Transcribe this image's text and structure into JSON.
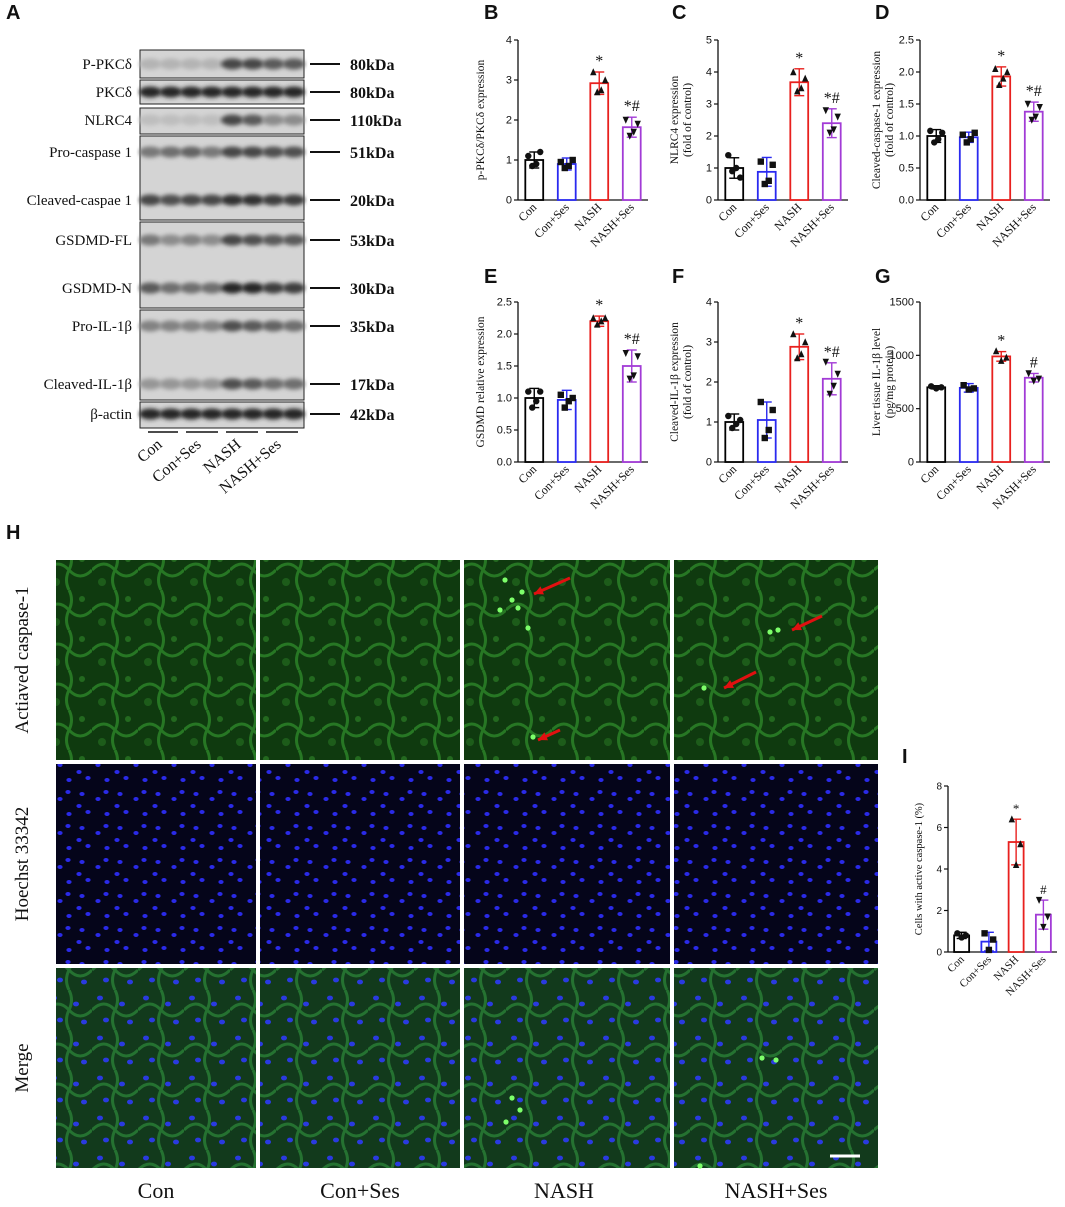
{
  "panel_labels": [
    "A",
    "B",
    "C",
    "D",
    "E",
    "F",
    "G",
    "H",
    "I"
  ],
  "western_blot": {
    "rows": [
      {
        "label": "P-PKCδ",
        "size": "80kDa"
      },
      {
        "label": "PKCδ",
        "size": "80kDa"
      },
      {
        "label": "NLRC4",
        "size": "110kDa"
      },
      {
        "label": "Pro-caspase 1",
        "size": "51kDa"
      },
      {
        "label": "Cleaved-caspae 1",
        "size": "20kDa"
      },
      {
        "label": "GSDMD-FL",
        "size": "53kDa"
      },
      {
        "label": "GSDMD-N",
        "size": "30kDa"
      },
      {
        "label": "Pro-IL-1β",
        "size": "35kDa"
      },
      {
        "label": "Cleaved-IL-1β",
        "size": "17kDa"
      },
      {
        "label": "β-actin",
        "size": "42kDa"
      }
    ],
    "groups": [
      "Con",
      "Con+Ses",
      "NASH",
      "NASH+Ses"
    ]
  },
  "chart_data": [
    {
      "id": "B",
      "type": "bar",
      "categories": [
        "Con",
        "Con+Ses",
        "NASH",
        "NASH+Ses"
      ],
      "values": [
        1.0,
        0.9,
        2.92,
        1.82
      ],
      "errors": [
        0.2,
        0.15,
        0.28,
        0.25
      ],
      "ylabel": "p-PKCδ/PKCδ expression",
      "ylim": [
        0,
        4
      ],
      "yticks": [
        0,
        1,
        2,
        3,
        4
      ],
      "points": [
        [
          1.1,
          0.85,
          0.9,
          1.2
        ],
        [
          0.95,
          0.8,
          0.85,
          1.0
        ],
        [
          3.2,
          2.7,
          2.75,
          3.0
        ],
        [
          2.0,
          1.6,
          1.7,
          1.9
        ]
      ],
      "annotations": [
        "",
        "",
        "*",
        "*#"
      ]
    },
    {
      "id": "C",
      "type": "bar",
      "categories": [
        "Con",
        "Con+Ses",
        "NASH",
        "NASH+Ses"
      ],
      "values": [
        1.0,
        0.88,
        3.68,
        2.4
      ],
      "errors": [
        0.32,
        0.45,
        0.42,
        0.45
      ],
      "ylabel": "NLRC4 expression\n(fold of control)",
      "ylim": [
        0,
        5
      ],
      "yticks": [
        0,
        1,
        2,
        3,
        4,
        5
      ],
      "points": [
        [
          1.4,
          0.9,
          1.0,
          0.7
        ],
        [
          1.2,
          0.5,
          0.6,
          1.1
        ],
        [
          4.0,
          3.4,
          3.5,
          3.8
        ],
        [
          2.8,
          2.1,
          2.2,
          2.6
        ]
      ],
      "annotations": [
        "",
        "",
        "*",
        "*#"
      ]
    },
    {
      "id": "D",
      "type": "bar",
      "categories": [
        "Con",
        "Con+Ses",
        "NASH",
        "NASH+Ses"
      ],
      "values": [
        1.0,
        0.98,
        1.93,
        1.38
      ],
      "errors": [
        0.1,
        0.08,
        0.15,
        0.15
      ],
      "ylabel": "Cleaved-caspase-1 expression\n(fold of control)",
      "ylim": [
        0,
        2.5
      ],
      "yticks": [
        0,
        0.5,
        1.0,
        1.5,
        2.0,
        2.5
      ],
      "points": [
        [
          1.08,
          0.9,
          0.95,
          1.05
        ],
        [
          1.02,
          0.9,
          0.95,
          1.05
        ],
        [
          2.05,
          1.8,
          1.9,
          2.0
        ],
        [
          1.5,
          1.25,
          1.3,
          1.45
        ]
      ],
      "annotations": [
        "",
        "",
        "*",
        "*#"
      ]
    },
    {
      "id": "E",
      "type": "bar",
      "categories": [
        "Con",
        "Con+Ses",
        "NASH",
        "NASH+Ses"
      ],
      "values": [
        1.0,
        0.97,
        2.2,
        1.5
      ],
      "errors": [
        0.15,
        0.15,
        0.08,
        0.25
      ],
      "ylabel": "GSDMD relative expression",
      "ylim": [
        0,
        2.5
      ],
      "yticks": [
        0,
        0.5,
        1.0,
        1.5,
        2.0,
        2.5
      ],
      "points": [
        [
          1.1,
          0.85,
          0.95,
          1.1
        ],
        [
          1.05,
          0.85,
          0.95,
          1.0
        ],
        [
          2.25,
          2.15,
          2.2,
          2.25
        ],
        [
          1.7,
          1.3,
          1.35,
          1.65
        ]
      ],
      "annotations": [
        "",
        "",
        "*",
        "*#"
      ]
    },
    {
      "id": "F",
      "type": "bar",
      "categories": [
        "Con",
        "Con+Ses",
        "NASH",
        "NASH+Ses"
      ],
      "values": [
        1.0,
        1.05,
        2.88,
        2.08
      ],
      "errors": [
        0.2,
        0.45,
        0.32,
        0.4
      ],
      "ylabel": "Cleaved-IL-1β expression\n(fold of control)",
      "ylim": [
        0,
        4
      ],
      "yticks": [
        0,
        1,
        2,
        3,
        4
      ],
      "points": [
        [
          1.15,
          0.85,
          0.95,
          1.05
        ],
        [
          1.5,
          0.6,
          0.8,
          1.3
        ],
        [
          3.2,
          2.6,
          2.7,
          3.0
        ],
        [
          2.5,
          1.7,
          1.9,
          2.2
        ]
      ],
      "annotations": [
        "",
        "",
        "*",
        "*#"
      ]
    },
    {
      "id": "G",
      "type": "bar",
      "categories": [
        "Con",
        "Con+Ses",
        "NASH",
        "NASH+Ses"
      ],
      "values": [
        700,
        695,
        990,
        790
      ],
      "errors": [
        15,
        40,
        45,
        40
      ],
      "ylabel": "Liver tissue IL-1β level\n(pg/mg protein)",
      "ylim": [
        0,
        1500
      ],
      "yticks": [
        0,
        500,
        1000,
        1500
      ],
      "points": [
        [
          710,
          690,
          700
        ],
        [
          720,
          680,
          690
        ],
        [
          1040,
          950,
          980
        ],
        [
          830,
          760,
          780
        ]
      ],
      "annotations": [
        "",
        "",
        "*",
        "#"
      ]
    },
    {
      "id": "I",
      "type": "bar",
      "categories": [
        "Con",
        "Con+Ses",
        "NASH",
        "NASH+Ses"
      ],
      "values": [
        0.8,
        0.5,
        5.3,
        1.8
      ],
      "errors": [
        0.15,
        0.45,
        1.1,
        0.7
      ],
      "ylabel": "Cells with active caspase-1 (%)",
      "ylim": [
        0,
        8
      ],
      "yticks": [
        0,
        2,
        4,
        6,
        8
      ],
      "points": [
        [
          0.9,
          0.7,
          0.8
        ],
        [
          0.9,
          0.1,
          0.6
        ],
        [
          6.4,
          4.2,
          5.2
        ],
        [
          2.5,
          1.2,
          1.7
        ]
      ],
      "annotations": [
        "",
        "",
        "*",
        "#"
      ]
    }
  ],
  "fluorescence": {
    "row_labels": [
      "Actiaved caspase-1",
      "Hoechst 33342",
      "Merge"
    ],
    "col_labels": [
      "Con",
      "Con+Ses",
      "NASH",
      "NASH+Ses"
    ]
  },
  "colors": {
    "con": "#000000",
    "con_ses": "#2a2af0",
    "nash": "#e8201e",
    "nash_ses": "#a23bd6",
    "green": "#1f7a1f",
    "blue": "#1b1bd8",
    "arrow": "#e01010"
  }
}
